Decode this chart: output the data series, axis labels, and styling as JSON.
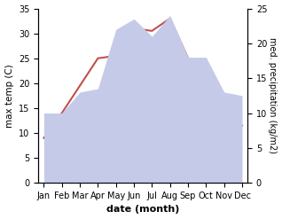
{
  "months": [
    "Jan",
    "Feb",
    "Mar",
    "Apr",
    "May",
    "Jun",
    "Jul",
    "Aug",
    "Sep",
    "Oct",
    "Nov",
    "Dec"
  ],
  "month_positions": [
    0,
    1,
    2,
    3,
    4,
    5,
    6,
    7,
    8,
    9,
    10,
    11
  ],
  "temperature": [
    9.0,
    14.0,
    19.5,
    25.0,
    25.5,
    31.0,
    30.5,
    33.0,
    25.0,
    19.0,
    13.0,
    11.5
  ],
  "precipitation": [
    10.0,
    10.0,
    13.0,
    13.5,
    22.0,
    23.5,
    21.0,
    24.0,
    18.0,
    18.0,
    13.0,
    12.5
  ],
  "temp_color": "#c0504d",
  "precip_color_fill": "#c5cae9",
  "temp_ylim": [
    0,
    35
  ],
  "precip_ylim": [
    0,
    25
  ],
  "temp_yticks": [
    0,
    5,
    10,
    15,
    20,
    25,
    30,
    35
  ],
  "precip_yticks": [
    0,
    5,
    10,
    15,
    20,
    25
  ],
  "xlabel": "date (month)",
  "ylabel_left": "max temp (C)",
  "ylabel_right": "med. precipitation (kg/m2)",
  "figsize": [
    3.18,
    2.47
  ],
  "dpi": 100
}
